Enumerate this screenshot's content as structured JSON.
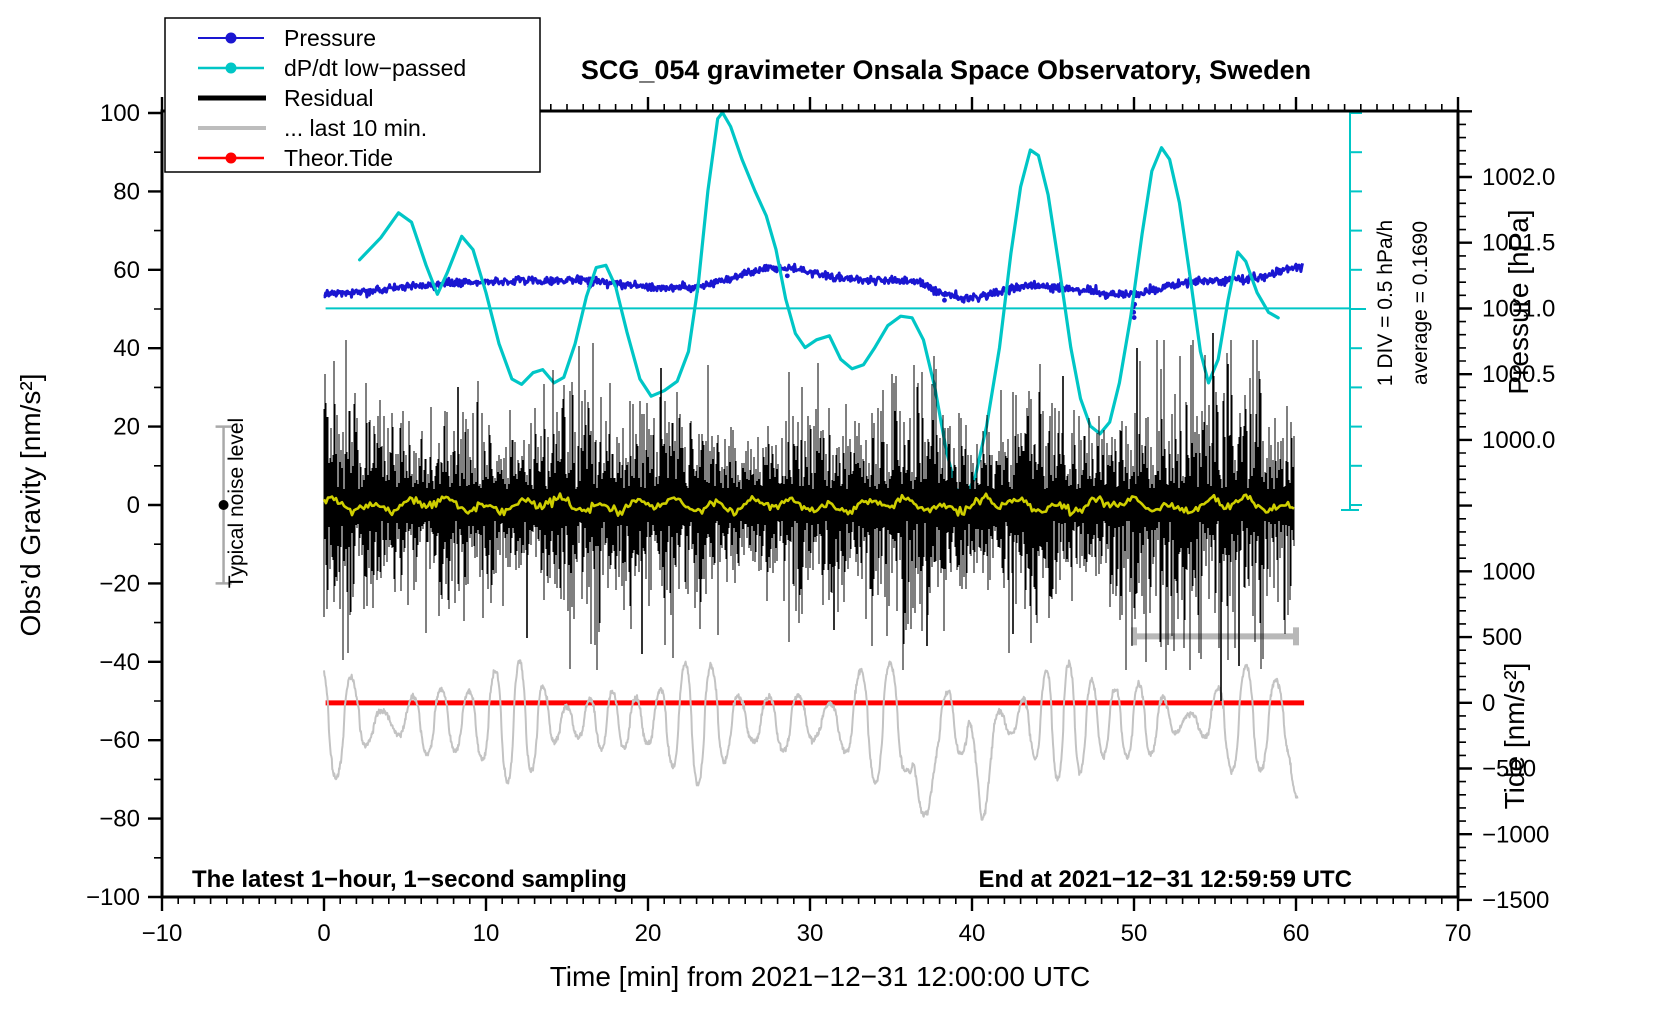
{
  "header": {
    "title": "SCG_054 gravimeter Onsala Space Observatory, Sweden"
  },
  "legend": {
    "items": [
      {
        "label": "Pressure",
        "style": "line-dot",
        "color": "#1a16d1"
      },
      {
        "label": "dP/dt low−passed",
        "style": "line-dot",
        "color": "#00c6c6"
      },
      {
        "label": "Residual",
        "style": "line-thick",
        "color": "#000000"
      },
      {
        "label": "... last 10 min.",
        "style": "line",
        "color": "#bdbdbd"
      },
      {
        "label": "Theor.Tide",
        "style": "line-dot",
        "color": "#ff0000"
      }
    ]
  },
  "annotations": {
    "sampling_note": "The latest 1−hour, 1−second sampling",
    "end_note": "End at 2021−12−31 12:59:59 UTC",
    "div_note": "1 DIV = 0.5 hPa/h",
    "average_note": "average = 0.1690",
    "noise_note": "Typical noise level"
  },
  "colors": {
    "pressure": "#1a16d1",
    "dpdt": "#00c6c6",
    "residual": "#000000",
    "last10": "#c3c3c3",
    "tide_red": "#ff0000",
    "smoothed": "#cfcf00",
    "noise_bar": "#a9a9a9",
    "scale_bar": "#b8b8b8",
    "frame": "#000000"
  },
  "chart_data": {
    "type": "line",
    "title": "SCG_054 gravimeter Onsala Space Observatory, Sweden",
    "axes": {
      "x": {
        "title": "Time [min] from 2021−12−31 12:00:00 UTC",
        "range": [
          -10,
          70
        ],
        "major_tick": 10,
        "minor_tick": 1,
        "ticks": [
          {
            "v": -10,
            "label": "−10"
          },
          {
            "v": 0,
            "label": "0"
          },
          {
            "v": 10,
            "label": "10"
          },
          {
            "v": 20,
            "label": "20"
          },
          {
            "v": 30,
            "label": "30"
          },
          {
            "v": 40,
            "label": "40"
          },
          {
            "v": 50,
            "label": "50"
          },
          {
            "v": 60,
            "label": "60"
          },
          {
            "v": 70,
            "label": "70"
          }
        ]
      },
      "y_left": {
        "title": "Obs’d Gravity [nm/s²]",
        "range": [
          -100,
          100
        ],
        "major_tick": 20,
        "minor_tick": 10,
        "ticks": [
          {
            "v": 100,
            "label": "100"
          },
          {
            "v": 80,
            "label": "80"
          },
          {
            "v": 60,
            "label": "60"
          },
          {
            "v": 40,
            "label": "40"
          },
          {
            "v": 20,
            "label": "20"
          },
          {
            "v": 0,
            "label": "0"
          },
          {
            "v": -20,
            "label": "−20"
          },
          {
            "v": -40,
            "label": "−40"
          },
          {
            "v": -60,
            "label": "−60"
          },
          {
            "v": -80,
            "label": "−80"
          },
          {
            "v": -100,
            "label": "−100"
          }
        ]
      },
      "y_right_pressure": {
        "title": "Pressure [hPa]",
        "major_tick": 0.5,
        "minor_tick": 0.1,
        "ticks": [
          {
            "v": 1002.0,
            "label": "1002.0"
          },
          {
            "v": 1001.5,
            "label": "1001.5"
          },
          {
            "v": 1001.0,
            "label": "1001.0"
          },
          {
            "v": 1000.5,
            "label": "1000.5"
          },
          {
            "v": 1000.0,
            "label": "1000.0"
          }
        ]
      },
      "y_right_tide": {
        "title": "Tide [nm/s²]",
        "major_tick": 500,
        "minor_tick": 100,
        "ticks": [
          {
            "v": 1000,
            "label": "1000"
          },
          {
            "v": 500,
            "label": "500"
          },
          {
            "v": 0,
            "label": "0"
          },
          {
            "v": -500,
            "label": "−500"
          },
          {
            "v": -1000,
            "label": "−1000"
          },
          {
            "v": -1500,
            "label": "−1500"
          }
        ]
      }
    },
    "series": [
      {
        "name": "Pressure",
        "unit": "hPa",
        "render": "dotted-noisy-line",
        "points": [
          [
            0,
            1001.11
          ],
          [
            2,
            1001.13
          ],
          [
            4,
            1001.16
          ],
          [
            6,
            1001.18
          ],
          [
            8,
            1001.2
          ],
          [
            10,
            1001.21
          ],
          [
            12,
            1001.215
          ],
          [
            14,
            1001.21
          ],
          [
            15.5,
            1001.225
          ],
          [
            17,
            1001.21
          ],
          [
            18.5,
            1001.19
          ],
          [
            20,
            1001.17
          ],
          [
            21.5,
            1001.16
          ],
          [
            23,
            1001.17
          ],
          [
            24.5,
            1001.21
          ],
          [
            26,
            1001.27
          ],
          [
            27.5,
            1001.315
          ],
          [
            29,
            1001.305
          ],
          [
            30.5,
            1001.27
          ],
          [
            32,
            1001.23
          ],
          [
            33.5,
            1001.22
          ],
          [
            35,
            1001.22
          ],
          [
            36.5,
            1001.21
          ],
          [
            37.5,
            1001.16
          ],
          [
            38.5,
            1001.1
          ],
          [
            39.5,
            1001.08
          ],
          [
            40.5,
            1001.09
          ],
          [
            41.5,
            1001.12
          ],
          [
            42.5,
            1001.16
          ],
          [
            43.5,
            1001.18
          ],
          [
            44.5,
            1001.17
          ],
          [
            45.5,
            1001.16
          ],
          [
            47,
            1001.14
          ],
          [
            48.5,
            1001.12
          ],
          [
            50,
            1001.11
          ],
          [
            51,
            1001.14
          ],
          [
            52,
            1001.17
          ],
          [
            53.5,
            1001.21
          ],
          [
            55,
            1001.22
          ],
          [
            56.5,
            1001.22
          ],
          [
            58,
            1001.25
          ],
          [
            59,
            1001.29
          ],
          [
            60,
            1001.32
          ],
          [
            60.4,
            1001.33
          ]
        ],
        "outliers": [
          [
            49.95,
            -0.1
          ],
          [
            49.98,
            -0.14
          ],
          [
            50.01,
            -0.18
          ],
          [
            50.04,
            -0.08
          ],
          [
            28.6,
            -0.06
          ],
          [
            16.4,
            -0.05
          ],
          [
            38.3,
            -0.05
          ]
        ]
      },
      {
        "name": "dP/dt low−passed",
        "unit": "hPa/h",
        "zero_level_gravity": 50,
        "average_hpa_per_h": 0.169,
        "points": [
          [
            2.2,
            0.62
          ],
          [
            3.5,
            0.9
          ],
          [
            4.6,
            1.22
          ],
          [
            5.4,
            1.1
          ],
          [
            6.3,
            0.55
          ],
          [
            7.0,
            0.18
          ],
          [
            7.6,
            0.45
          ],
          [
            8.5,
            0.92
          ],
          [
            9.2,
            0.75
          ],
          [
            10.0,
            0.2
          ],
          [
            10.8,
            -0.45
          ],
          [
            11.6,
            -0.9
          ],
          [
            12.2,
            -0.97
          ],
          [
            12.9,
            -0.82
          ],
          [
            13.5,
            -0.78
          ],
          [
            14.2,
            -0.95
          ],
          [
            14.8,
            -0.88
          ],
          [
            15.5,
            -0.45
          ],
          [
            16.2,
            0.15
          ],
          [
            16.8,
            0.52
          ],
          [
            17.4,
            0.55
          ],
          [
            18.0,
            0.28
          ],
          [
            18.7,
            -0.3
          ],
          [
            19.5,
            -0.9
          ],
          [
            20.2,
            -1.12
          ],
          [
            21.0,
            -1.05
          ],
          [
            21.8,
            -0.93
          ],
          [
            22.5,
            -0.55
          ],
          [
            23.1,
            0.3
          ],
          [
            23.7,
            1.5
          ],
          [
            24.3,
            2.42
          ],
          [
            24.6,
            2.5
          ],
          [
            25.1,
            2.32
          ],
          [
            25.8,
            1.9
          ],
          [
            26.6,
            1.5
          ],
          [
            27.3,
            1.18
          ],
          [
            27.9,
            0.75
          ],
          [
            28.5,
            0.12
          ],
          [
            29.1,
            -0.32
          ],
          [
            29.7,
            -0.5
          ],
          [
            30.4,
            -0.4
          ],
          [
            31.2,
            -0.35
          ],
          [
            31.9,
            -0.65
          ],
          [
            32.6,
            -0.77
          ],
          [
            33.3,
            -0.72
          ],
          [
            34.0,
            -0.5
          ],
          [
            34.8,
            -0.22
          ],
          [
            35.6,
            -0.1
          ],
          [
            36.3,
            -0.12
          ],
          [
            37.0,
            -0.4
          ],
          [
            37.7,
            -1.0
          ],
          [
            38.4,
            -1.8
          ],
          [
            39.0,
            -2.3
          ],
          [
            39.6,
            -2.4
          ],
          [
            40.2,
            -2.15
          ],
          [
            40.9,
            -1.5
          ],
          [
            41.7,
            -0.5
          ],
          [
            42.4,
            0.7
          ],
          [
            43.0,
            1.55
          ],
          [
            43.6,
            2.02
          ],
          [
            44.1,
            1.95
          ],
          [
            44.7,
            1.45
          ],
          [
            45.4,
            0.5
          ],
          [
            46.1,
            -0.5
          ],
          [
            46.7,
            -1.15
          ],
          [
            47.3,
            -1.5
          ],
          [
            47.9,
            -1.6
          ],
          [
            48.5,
            -1.45
          ],
          [
            49.1,
            -0.95
          ],
          [
            49.8,
            -0.1
          ],
          [
            50.5,
            0.95
          ],
          [
            51.1,
            1.75
          ],
          [
            51.7,
            2.05
          ],
          [
            52.2,
            1.9
          ],
          [
            52.8,
            1.35
          ],
          [
            53.5,
            0.35
          ],
          [
            54.1,
            -0.55
          ],
          [
            54.6,
            -0.95
          ],
          [
            55.2,
            -0.65
          ],
          [
            55.8,
            0.1
          ],
          [
            56.4,
            0.72
          ],
          [
            56.9,
            0.6
          ],
          [
            57.6,
            0.2
          ],
          [
            58.3,
            -0.05
          ],
          [
            58.9,
            -0.12
          ]
        ]
      },
      {
        "name": "Residual",
        "unit": "nm/s²",
        "render": "noise-band",
        "mean": 0,
        "typical_half_amplitude": 25,
        "t_range": [
          0,
          59.9
        ],
        "spikes_up": [
          [
            8.3,
            30
          ],
          [
            20.8,
            35
          ],
          [
            45.6,
            33
          ],
          [
            50.2,
            40
          ],
          [
            54.9,
            44
          ],
          [
            55.8,
            36
          ]
        ],
        "spikes_down": [
          [
            12.5,
            -34
          ],
          [
            19.6,
            -38
          ],
          [
            31.5,
            -32
          ],
          [
            37.2,
            -36
          ],
          [
            42.5,
            -33
          ],
          [
            55.4,
            -50
          ],
          [
            56.5,
            -41
          ]
        ]
      },
      {
        "name": "Residual smoothed",
        "unit": "nm/s²",
        "render": "wiggly-line",
        "mean": 0,
        "half_amplitude": 2,
        "t_range": [
          0,
          59.9
        ]
      },
      {
        "name": "... last 10 min.",
        "unit": "nm/s² (tide axis)",
        "render": "oscillation",
        "description": "last 10 minutes of residual, magnified",
        "mean_tide": -140,
        "period_min": 1.66,
        "amplitude_range": [
          60,
          480
        ],
        "deep_troughs": [
          [
            36.9,
            -1300
          ],
          [
            40.55,
            -1050
          ]
        ],
        "t_range": [
          0,
          60.1
        ]
      },
      {
        "name": "Theor.Tide",
        "unit": "nm/s² (tide axis)",
        "render": "flat-line",
        "value": 0,
        "t_range": [
          0.1,
          60.5
        ]
      }
    ],
    "scale_indicators": {
      "noise_bar": {
        "center_gravity": 0,
        "half_range": 20,
        "t": -6.2
      },
      "dpdt_scale_bar": {
        "div_hpa_per_h": 0.5,
        "t": 63.3
      },
      "last10_bar": {
        "t_range": [
          50,
          60
        ],
        "gravity": -33.5
      }
    }
  }
}
